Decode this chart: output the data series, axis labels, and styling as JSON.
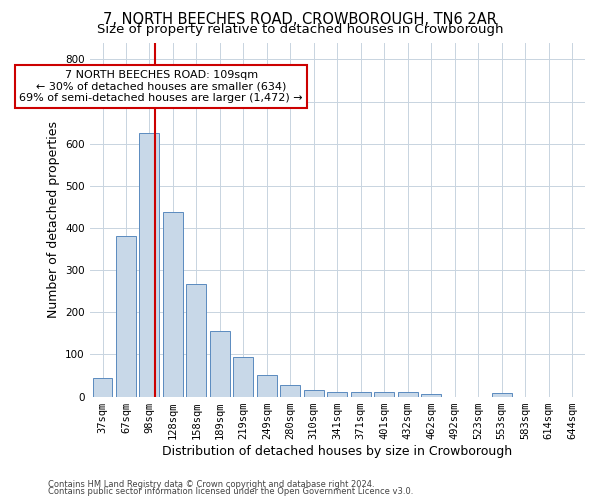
{
  "title": "7, NORTH BEECHES ROAD, CROWBOROUGH, TN6 2AR",
  "subtitle": "Size of property relative to detached houses in Crowborough",
  "xlabel": "Distribution of detached houses by size in Crowborough",
  "ylabel": "Number of detached properties",
  "categories": [
    "37sqm",
    "67sqm",
    "98sqm",
    "128sqm",
    "158sqm",
    "189sqm",
    "219sqm",
    "249sqm",
    "280sqm",
    "310sqm",
    "341sqm",
    "371sqm",
    "401sqm",
    "432sqm",
    "462sqm",
    "492sqm",
    "523sqm",
    "553sqm",
    "583sqm",
    "614sqm",
    "644sqm"
  ],
  "values": [
    43,
    382,
    625,
    437,
    267,
    155,
    95,
    52,
    27,
    15,
    10,
    10,
    10,
    10,
    5,
    0,
    0,
    8,
    0,
    0,
    0
  ],
  "bar_color": "#c8d8e8",
  "bar_edge_color": "#5a8abf",
  "red_line_x": 2.22,
  "annotation_text": "7 NORTH BEECHES ROAD: 109sqm\n← 30% of detached houses are smaller (634)\n69% of semi-detached houses are larger (1,472) →",
  "annotation_box_color": "#ffffff",
  "annotation_box_edge": "#cc0000",
  "red_line_color": "#cc0000",
  "ylim": [
    0,
    840
  ],
  "yticks": [
    0,
    100,
    200,
    300,
    400,
    500,
    600,
    700,
    800
  ],
  "footnote1": "Contains HM Land Registry data © Crown copyright and database right 2024.",
  "footnote2": "Contains public sector information licensed under the Open Government Licence v3.0.",
  "background_color": "#ffffff",
  "grid_color": "#c8d4e0",
  "title_fontsize": 10.5,
  "subtitle_fontsize": 9.5,
  "tick_fontsize": 7.5,
  "xlabel_fontsize": 9,
  "ylabel_fontsize": 9,
  "annotation_fontsize": 8
}
